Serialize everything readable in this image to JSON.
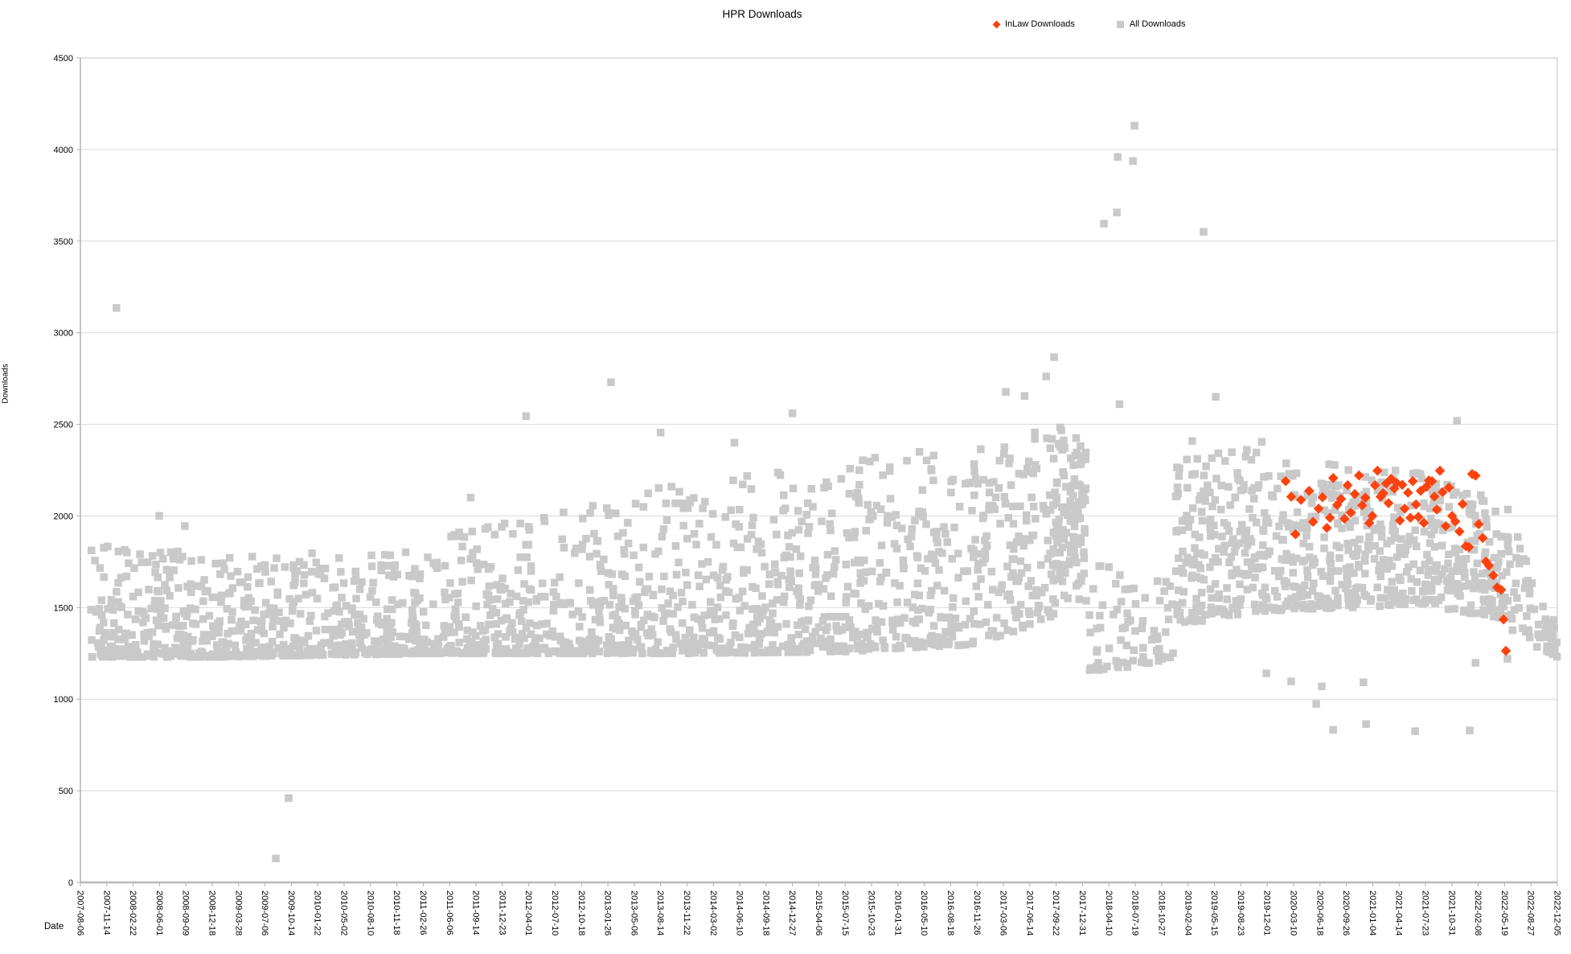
{
  "chart_data": {
    "type": "scatter",
    "title": "HPR Downloads",
    "xlabel": "Date",
    "ylabel": "Downloads",
    "grid": "horizontal",
    "colors": {
      "inlaw": "#FF420E",
      "all": "#C9C9C9",
      "gridline": "#D9D9D9",
      "axis": "#B0B0B0",
      "text": "#000000"
    },
    "legend": {
      "position": "top-right",
      "items": [
        {
          "label": "InLaw Downloads",
          "marker": "diamond",
          "color": "#FF420E"
        },
        {
          "label": "All Downloads",
          "marker": "square",
          "color": "#C9C9C9"
        }
      ]
    },
    "y_axis": {
      "min": 0,
      "max": 4500,
      "tick_interval": 500,
      "tick_labels": [
        "0",
        "500",
        "1000",
        "1500",
        "2000",
        "2500",
        "3000",
        "3500",
        "4000",
        "4500"
      ]
    },
    "x_axis": {
      "start_date": "2007-08-06",
      "end_date": "2022-12-05",
      "total_days": 5600,
      "tick_interval_days": 100,
      "tick_labels": [
        "2007-08-06",
        "2007-11-14",
        "2008-02-22",
        "2008-06-01",
        "2008-09-09",
        "2008-12-18",
        "2009-03-28",
        "2009-07-06",
        "2009-10-14",
        "2010-01-22",
        "2010-05-02",
        "2010-08-10",
        "2010-11-18",
        "2011-02-26",
        "2011-06-06",
        "2011-09-14",
        "2011-12-23",
        "2012-04-01",
        "2012-07-10",
        "2012-10-18",
        "2013-01-26",
        "2013-05-06",
        "2013-08-14",
        "2013-11-22",
        "2014-03-02",
        "2014-06-10",
        "2014-09-18",
        "2014-12-27",
        "2015-04-06",
        "2015-07-15",
        "2015-10-23",
        "2016-01-31",
        "2016-05-10",
        "2016-08-18",
        "2016-11-26",
        "2017-03-06",
        "2017-06-14",
        "2017-09-22",
        "2017-12-31",
        "2018-04-10",
        "2018-07-19",
        "2018-10-27",
        "2019-02-04",
        "2019-05-15",
        "2019-08-23",
        "2019-12-01",
        "2020-03-10",
        "2020-06-18",
        "2020-09-26",
        "2021-01-04",
        "2021-04-14",
        "2021-07-23",
        "2021-10-31",
        "2022-02-08",
        "2022-05-19",
        "2022-08-27",
        "2022-12-05"
      ]
    },
    "series": [
      {
        "name": "All Downloads",
        "marker": "square",
        "color": "#C9C9C9",
        "marker_size": 9.5,
        "seed": 7,
        "band_segments": [
          {
            "d0": 40,
            "d1": 500,
            "n": 230,
            "y0": [
              1230,
              1850
            ],
            "y1": [
              1230,
              1800
            ],
            "p": 2.6
          },
          {
            "d0": 500,
            "d1": 900,
            "n": 200,
            "y0": [
              1230,
              1780
            ],
            "y1": [
              1240,
              1800
            ],
            "p": 2.6
          },
          {
            "d0": 900,
            "d1": 1400,
            "n": 250,
            "y0": [
              1240,
              1780
            ],
            "y1": [
              1250,
              1850
            ],
            "p": 2.5
          },
          {
            "d0": 1400,
            "d1": 1900,
            "n": 250,
            "y0": [
              1250,
              1900
            ],
            "y1": [
              1250,
              2050
            ],
            "p": 2.4
          },
          {
            "d0": 1900,
            "d1": 2400,
            "n": 250,
            "y0": [
              1250,
              2100
            ],
            "y1": [
              1250,
              2200
            ],
            "p": 2.3
          },
          {
            "d0": 2400,
            "d1": 2900,
            "n": 250,
            "y0": [
              1250,
              2200
            ],
            "y1": [
              1260,
              2300
            ],
            "p": 2.2
          },
          {
            "d0": 2900,
            "d1": 3400,
            "n": 250,
            "y0": [
              1260,
              2300
            ],
            "y1": [
              1300,
              2420
            ],
            "p": 1.9
          },
          {
            "d0": 3400,
            "d1": 3700,
            "n": 150,
            "y0": [
              1300,
              2420
            ],
            "y1": [
              1450,
              2530
            ],
            "p": 1.35
          },
          {
            "d0": 3700,
            "d1": 3815,
            "n": 115,
            "y0": [
              1550,
              2530
            ],
            "y1": [
              1500,
              2380
            ],
            "p": 0.85
          },
          {
            "d0": 3815,
            "d1": 4150,
            "n": 80,
            "y0": [
              1150,
              1750
            ],
            "y1": [
              1200,
              1700
            ],
            "p": 1.6
          },
          {
            "d0": 4150,
            "d1": 4480,
            "n": 195,
            "y0": [
              1400,
              2300
            ],
            "y1": [
              1480,
              2420
            ],
            "p": 1.35
          },
          {
            "d0": 4480,
            "d1": 5150,
            "n": 380,
            "y0": [
              1480,
              2320
            ],
            "y1": [
              1520,
              2260
            ],
            "p": 1.5
          },
          {
            "d0": 5150,
            "d1": 5430,
            "n": 145,
            "y0": [
              1500,
              2200
            ],
            "y1": [
              1430,
              2060
            ],
            "p": 1.5
          },
          {
            "d0": 5430,
            "d1": 5600,
            "n": 55,
            "y0": [
              1350,
              1950
            ],
            "y1": [
              1230,
              1430
            ],
            "p": 1.4
          }
        ],
        "outlier_points": [
          [
            137,
            3135
          ],
          [
            299,
            2000
          ],
          [
            396,
            1945
          ],
          [
            741,
            130
          ],
          [
            790,
            460
          ],
          [
            1480,
            2100
          ],
          [
            1690,
            2545
          ],
          [
            2012,
            2730
          ],
          [
            2200,
            2455
          ],
          [
            2480,
            2400
          ],
          [
            2700,
            2560
          ],
          [
            3509,
            2677
          ],
          [
            3580,
            2655
          ],
          [
            3662,
            2761
          ],
          [
            3692,
            2867
          ],
          [
            3881,
            3595
          ],
          [
            3930,
            3656
          ],
          [
            3933,
            3959
          ],
          [
            3940,
            2610
          ],
          [
            3991,
            3937
          ],
          [
            3997,
            4130
          ],
          [
            4216,
            2409
          ],
          [
            4259,
            3551
          ],
          [
            4305,
            2650
          ],
          [
            4497,
            1141
          ],
          [
            4591,
            1097
          ],
          [
            4686,
            974
          ],
          [
            4707,
            1070
          ],
          [
            4750,
            833
          ],
          [
            4865,
            1092
          ],
          [
            4875,
            864
          ],
          [
            5061,
            825
          ],
          [
            5220,
            2519
          ],
          [
            5268,
            829
          ],
          [
            5290,
            1198
          ],
          [
            5411,
            1220
          ]
        ]
      },
      {
        "name": "InLaw Downloads",
        "marker": "diamond",
        "color": "#FF420E",
        "marker_size": 12.5,
        "points": [
          [
            4570,
            2190
          ],
          [
            4591,
            2105
          ],
          [
            4607,
            1900
          ],
          [
            4628,
            2088
          ],
          [
            4659,
            2137
          ],
          [
            4674,
            1968
          ],
          [
            4695,
            2040
          ],
          [
            4710,
            2102
          ],
          [
            4726,
            1935
          ],
          [
            4738,
            1990
          ],
          [
            4750,
            2207
          ],
          [
            4765,
            2060
          ],
          [
            4780,
            2093
          ],
          [
            4793,
            1985
          ],
          [
            4805,
            2168
          ],
          [
            4817,
            2018
          ],
          [
            4832,
            2120
          ],
          [
            4848,
            2221
          ],
          [
            4860,
            2058
          ],
          [
            4872,
            2100
          ],
          [
            4887,
            1962
          ],
          [
            4899,
            2000
          ],
          [
            4909,
            2168
          ],
          [
            4918,
            2247
          ],
          [
            4930,
            2105
          ],
          [
            4939,
            2124
          ],
          [
            4951,
            2177
          ],
          [
            4960,
            2070
          ],
          [
            4970,
            2203
          ],
          [
            4982,
            2150
          ],
          [
            4991,
            2180
          ],
          [
            5003,
            1975
          ],
          [
            5012,
            2170
          ],
          [
            5021,
            2040
          ],
          [
            5034,
            2127
          ],
          [
            5043,
            1990
          ],
          [
            5052,
            2190
          ],
          [
            5064,
            2063
          ],
          [
            5073,
            1995
          ],
          [
            5082,
            2137
          ],
          [
            5094,
            1962
          ],
          [
            5104,
            2160
          ],
          [
            5113,
            2194
          ],
          [
            5125,
            2190
          ],
          [
            5134,
            2106
          ],
          [
            5143,
            2035
          ],
          [
            5155,
            2247
          ],
          [
            5165,
            2130
          ],
          [
            5177,
            1945
          ],
          [
            5189,
            2155
          ],
          [
            5201,
            2000
          ],
          [
            5213,
            1970
          ],
          [
            5229,
            1915
          ],
          [
            5241,
            2065
          ],
          [
            5253,
            1835
          ],
          [
            5265,
            1830
          ],
          [
            5277,
            2229
          ],
          [
            5290,
            2220
          ],
          [
            5302,
            1955
          ],
          [
            5317,
            1880
          ],
          [
            5329,
            1751
          ],
          [
            5341,
            1729
          ],
          [
            5357,
            1676
          ],
          [
            5372,
            1610
          ],
          [
            5387,
            1597
          ],
          [
            5396,
            1435
          ],
          [
            5405,
            1264
          ]
        ]
      }
    ]
  }
}
